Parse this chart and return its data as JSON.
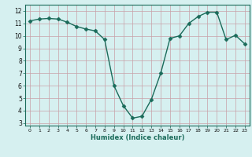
{
  "x": [
    0,
    1,
    2,
    3,
    4,
    5,
    6,
    7,
    8,
    9,
    10,
    11,
    12,
    13,
    14,
    15,
    16,
    17,
    18,
    19,
    20,
    21,
    22,
    23
  ],
  "y": [
    11.2,
    11.35,
    11.4,
    11.35,
    11.1,
    10.75,
    10.55,
    10.4,
    9.7,
    6.0,
    4.4,
    3.4,
    3.55,
    4.9,
    7.0,
    9.8,
    10.0,
    11.0,
    11.55,
    11.9,
    11.9,
    9.7,
    10.05,
    9.35
  ],
  "xlabel": "Humidex (Indice chaleur)",
  "xlim": [
    -0.5,
    23.5
  ],
  "ylim": [
    2.8,
    12.5
  ],
  "yticks": [
    3,
    4,
    5,
    6,
    7,
    8,
    9,
    10,
    11,
    12
  ],
  "xticks": [
    0,
    1,
    2,
    3,
    4,
    5,
    6,
    7,
    8,
    9,
    10,
    11,
    12,
    13,
    14,
    15,
    16,
    17,
    18,
    19,
    20,
    21,
    22,
    23
  ],
  "line_color": "#1a6b5a",
  "bg_color": "#d6f0f0",
  "grid_color": "#c8a0a8",
  "marker_size": 2.5,
  "line_width": 1.0
}
